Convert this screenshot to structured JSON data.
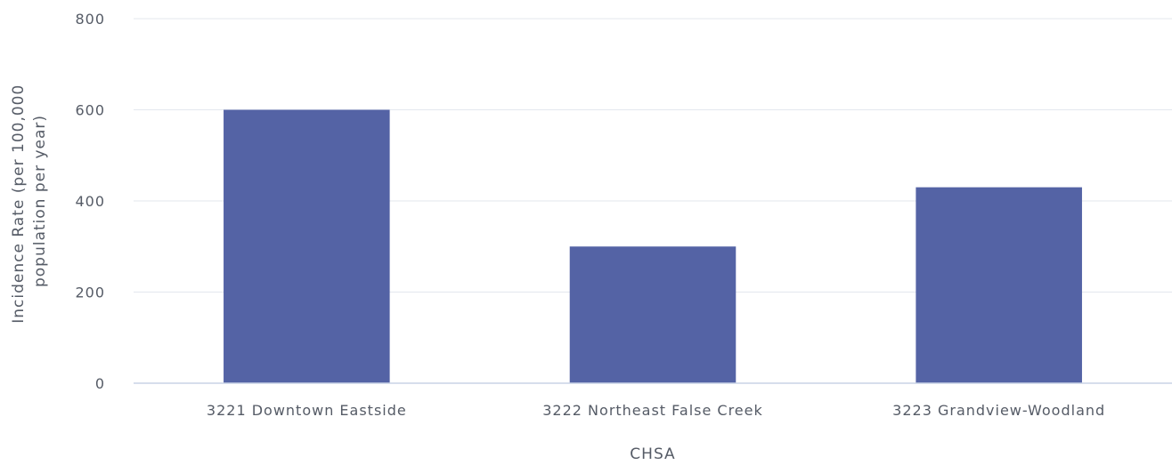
{
  "chart_data": {
    "type": "bar",
    "categories": [
      "3221 Downtown Eastside",
      "3222 Northeast False Creek",
      "3223 Grandview-Woodland"
    ],
    "series": [
      {
        "values": [
          600,
          300,
          430
        ],
        "color": "#5463a5"
      }
    ],
    "xlabel": "CHSA",
    "ylabel_lines": [
      "Incidence Rate (per 100,000",
      "population per year)"
    ],
    "ylim": [
      0,
      800
    ],
    "yticks": [
      0,
      200,
      400,
      600,
      800
    ],
    "grid": true,
    "legend": "none"
  }
}
